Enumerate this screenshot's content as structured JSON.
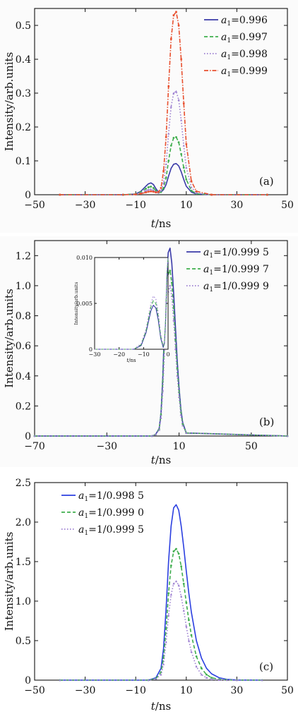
{
  "colors": {
    "series1": "#3a3aa8",
    "series2": "#3fae4d",
    "series3": "#9a7cd0",
    "series4": "#e8502f"
  },
  "chart_data": [
    {
      "id": "a",
      "type": "line",
      "panel_label": "(a)",
      "xlabel_italic": "t",
      "xlabel_unit": "/ns",
      "ylabel": "Intensity/arb.units",
      "xlim": [
        -50,
        50
      ],
      "ylim": [
        0,
        0.55
      ],
      "xticks": [
        -50,
        -30,
        -10,
        10,
        30,
        50
      ],
      "yticks": [
        0,
        0.1,
        0.2,
        0.3,
        0.4,
        0.5
      ],
      "ytick_labels": [
        "0",
        "0.1",
        "0.2",
        "0.3",
        "0.4",
        "0.5"
      ],
      "legend": {
        "position": "top-right"
      },
      "series": [
        {
          "name_prefix": "a",
          "name_sub": "1",
          "name_value": "=0.996",
          "style": "solid",
          "color": "#3a3aa8",
          "x": [
            -40,
            -15,
            -10,
            -8,
            -6,
            -5,
            -4,
            -3,
            -2,
            -1,
            0,
            1,
            2,
            3,
            4,
            5,
            6,
            7,
            8,
            9,
            10,
            12,
            14,
            20,
            42
          ],
          "y": [
            0,
            0,
            0.002,
            0.01,
            0.025,
            0.032,
            0.035,
            0.03,
            0.018,
            0.008,
            0.008,
            0.015,
            0.03,
            0.055,
            0.078,
            0.09,
            0.092,
            0.085,
            0.068,
            0.045,
            0.025,
            0.008,
            0.002,
            0,
            0
          ]
        },
        {
          "name_prefix": "a",
          "name_sub": "1",
          "name_value": "=0.997",
          "style": "dash",
          "color": "#3fae4d",
          "x": [
            -40,
            -15,
            -10,
            -8,
            -6,
            -5,
            -4,
            -3,
            -2,
            -1,
            0,
            1,
            2,
            3,
            4,
            5,
            6,
            7,
            8,
            9,
            10,
            12,
            14,
            20,
            42
          ],
          "y": [
            0,
            0,
            0.002,
            0.008,
            0.018,
            0.022,
            0.024,
            0.02,
            0.012,
            0.006,
            0.008,
            0.02,
            0.05,
            0.1,
            0.145,
            0.168,
            0.17,
            0.155,
            0.12,
            0.08,
            0.045,
            0.012,
            0.003,
            0,
            0
          ]
        },
        {
          "name_prefix": "a",
          "name_sub": "1",
          "name_value": "=0.998",
          "style": "dot",
          "color": "#9a7cd0",
          "x": [
            -40,
            -15,
            -10,
            -8,
            -6,
            -5,
            -4,
            -3,
            -2,
            -1,
            0,
            1,
            2,
            3,
            4,
            5,
            6,
            7,
            8,
            9,
            10,
            12,
            14,
            20,
            42
          ],
          "y": [
            0,
            0,
            0.001,
            0.005,
            0.012,
            0.015,
            0.016,
            0.013,
            0.008,
            0.006,
            0.012,
            0.035,
            0.09,
            0.18,
            0.26,
            0.3,
            0.305,
            0.28,
            0.22,
            0.145,
            0.08,
            0.022,
            0.005,
            0,
            0
          ]
        },
        {
          "name_prefix": "a",
          "name_sub": "1",
          "name_value": "=0.999",
          "style": "dashdot",
          "color": "#e8502f",
          "x": [
            -40,
            -15,
            -10,
            -8,
            -6,
            -5,
            -4,
            -3,
            -2,
            -1,
            0,
            1,
            2,
            3,
            4,
            5,
            6,
            7,
            8,
            9,
            10,
            12,
            14,
            20,
            42
          ],
          "y": [
            0,
            0,
            0.001,
            0.003,
            0.007,
            0.009,
            0.01,
            0.009,
            0.007,
            0.008,
            0.02,
            0.07,
            0.17,
            0.32,
            0.46,
            0.53,
            0.54,
            0.5,
            0.4,
            0.27,
            0.15,
            0.04,
            0.01,
            0,
            0
          ]
        }
      ]
    },
    {
      "id": "b",
      "type": "line",
      "panel_label": "(b)",
      "xlabel_italic": "t",
      "xlabel_unit": "/ns",
      "ylabel": "Intensity/arb.units",
      "xlim": [
        -70,
        70
      ],
      "ylim": [
        0,
        1.3
      ],
      "xticks": [
        -70,
        -30,
        10,
        50
      ],
      "yticks": [
        0,
        0.2,
        0.4,
        0.6,
        0.8,
        1.0,
        1.2
      ],
      "ytick_labels": [
        "0",
        "0.2",
        "0.4",
        "0.6",
        "0.8",
        "1.0",
        "1.2"
      ],
      "legend": {
        "position": "top-right"
      },
      "series": [
        {
          "name_prefix": "a",
          "name_sub": "1",
          "name_value": "=1/0.999 5",
          "style": "solid",
          "color": "#3a3aa8",
          "x": [
            -70,
            -5,
            -3,
            -1,
            0,
            1,
            2,
            3,
            4,
            5,
            6,
            7,
            8,
            9,
            10,
            11,
            12,
            14,
            70
          ],
          "y": [
            0,
            0,
            0.01,
            0.05,
            0.15,
            0.4,
            0.75,
            1.05,
            1.22,
            1.25,
            1.15,
            0.95,
            0.72,
            0.5,
            0.32,
            0.18,
            0.09,
            0.02,
            0
          ]
        },
        {
          "name_prefix": "a",
          "name_sub": "1",
          "name_value": "=1/0.999 7",
          "style": "dash",
          "color": "#3fae4d",
          "x": [
            -70,
            -5,
            -3,
            -1,
            0,
            1,
            2,
            3,
            4,
            5,
            6,
            7,
            8,
            9,
            10,
            11,
            12,
            14,
            70
          ],
          "y": [
            0,
            0,
            0.01,
            0.045,
            0.14,
            0.36,
            0.68,
            0.95,
            1.08,
            1.1,
            1.02,
            0.85,
            0.64,
            0.45,
            0.29,
            0.16,
            0.08,
            0.02,
            0
          ]
        },
        {
          "name_prefix": "a",
          "name_sub": "1",
          "name_value": "=1/0.999 9",
          "style": "dot",
          "color": "#9a7cd0",
          "x": [
            -70,
            -5,
            -3,
            -1,
            0,
            1,
            2,
            3,
            4,
            5,
            6,
            7,
            8,
            9,
            10,
            11,
            12,
            14,
            70
          ],
          "y": [
            0,
            0,
            0.01,
            0.04,
            0.12,
            0.3,
            0.58,
            0.82,
            0.96,
            1.0,
            0.93,
            0.77,
            0.58,
            0.4,
            0.26,
            0.14,
            0.07,
            0.02,
            0
          ]
        }
      ]
    },
    {
      "id": "b-inset",
      "type": "line",
      "ylabel": "Intensity/arb.units",
      "xlabel_italic": "t",
      "xlabel_unit": "/ns",
      "xlim": [
        -30,
        0
      ],
      "ylim": [
        0,
        0.01
      ],
      "xticks": [
        -30,
        -20,
        -10,
        0
      ],
      "yticks": [
        0,
        0.005,
        0.01
      ],
      "ytick_labels": [
        "0",
        "0.005",
        "0.010"
      ],
      "series": [
        {
          "style": "solid",
          "color": "#3a3aa8",
          "x": [
            -30,
            -14,
            -11,
            -9,
            -7,
            -6,
            -5,
            -4,
            -3,
            -2,
            -1.5,
            -1,
            -0.5,
            0
          ],
          "y": [
            0,
            0,
            0.0004,
            0.0018,
            0.0042,
            0.0048,
            0.0045,
            0.0032,
            0.0012,
            0.0002,
            0.0006,
            0.003,
            0.0075,
            0.011
          ]
        },
        {
          "style": "dash",
          "color": "#3fae4d",
          "x": [
            -30,
            -14,
            -11,
            -9,
            -7,
            -6,
            -5,
            -4,
            -3,
            -2,
            -1.5,
            -1,
            -0.5,
            0
          ],
          "y": [
            0,
            0,
            0.0005,
            0.002,
            0.0046,
            0.0053,
            0.005,
            0.0036,
            0.0014,
            0.0003,
            0.0007,
            0.0032,
            0.008,
            0.011
          ]
        },
        {
          "style": "dot",
          "color": "#9a7cd0",
          "x": [
            -30,
            -14,
            -11,
            -9,
            -7,
            -6,
            -5,
            -4,
            -3,
            -2,
            -1.5,
            -1,
            -0.5,
            0
          ],
          "y": [
            0,
            0,
            0.0006,
            0.0022,
            0.005,
            0.0058,
            0.0055,
            0.004,
            0.0016,
            0.0004,
            0.0008,
            0.0034,
            0.0085,
            0.011
          ]
        }
      ]
    },
    {
      "id": "c",
      "type": "line",
      "panel_label": "(c)",
      "xlabel_italic": "t",
      "xlabel_unit": "/ns",
      "ylabel": "Intensity/arb.units",
      "xlim": [
        -50,
        50
      ],
      "ylim": [
        0,
        2.5
      ],
      "xticks": [
        -50,
        -30,
        -10,
        10,
        30,
        50
      ],
      "yticks": [
        0,
        0.5,
        1.0,
        1.5,
        2.0,
        2.5
      ],
      "ytick_labels": [
        "0",
        "0.5",
        "1.0",
        "1.5",
        "2.0",
        "2.5"
      ],
      "legend": {
        "position": "top-left"
      },
      "series": [
        {
          "name_prefix": "a",
          "name_sub": "1",
          "name_value": "=1/0.998 5",
          "style": "solid",
          "color": "#2b3fe0",
          "x": [
            -40,
            -5,
            -2,
            0,
            1,
            2,
            3,
            4,
            5,
            6,
            7,
            8,
            9,
            10,
            11,
            12,
            14,
            16,
            18,
            20,
            23,
            26,
            30,
            40
          ],
          "y": [
            0,
            0,
            0.03,
            0.15,
            0.4,
            0.9,
            1.5,
            1.95,
            2.18,
            2.22,
            2.15,
            1.95,
            1.68,
            1.38,
            1.1,
            0.86,
            0.5,
            0.28,
            0.15,
            0.08,
            0.03,
            0.01,
            0.002,
            0
          ]
        },
        {
          "name_prefix": "a",
          "name_sub": "1",
          "name_value": "=1/0.999 0",
          "style": "dash",
          "color": "#3fae4d",
          "x": [
            -40,
            -5,
            -2,
            0,
            1,
            2,
            3,
            4,
            5,
            6,
            7,
            8,
            9,
            10,
            11,
            12,
            14,
            16,
            18,
            20,
            23,
            26,
            30,
            40
          ],
          "y": [
            0,
            0,
            0.02,
            0.1,
            0.28,
            0.65,
            1.1,
            1.45,
            1.63,
            1.66,
            1.6,
            1.44,
            1.22,
            0.98,
            0.76,
            0.57,
            0.3,
            0.15,
            0.07,
            0.03,
            0.01,
            0.003,
            0.001,
            0
          ]
        },
        {
          "name_prefix": "a",
          "name_sub": "1",
          "name_value": "=1/0.999 5",
          "style": "dot",
          "color": "#9a7cd0",
          "x": [
            -40,
            -5,
            -2,
            0,
            1,
            2,
            3,
            4,
            5,
            6,
            7,
            8,
            9,
            10,
            11,
            12,
            14,
            16,
            18,
            20,
            23,
            26,
            30,
            40
          ],
          "y": [
            0,
            0,
            0.015,
            0.07,
            0.2,
            0.48,
            0.82,
            1.08,
            1.22,
            1.25,
            1.2,
            1.06,
            0.88,
            0.68,
            0.5,
            0.36,
            0.17,
            0.07,
            0.03,
            0.01,
            0.003,
            0.001,
            0,
            0
          ]
        }
      ]
    }
  ]
}
